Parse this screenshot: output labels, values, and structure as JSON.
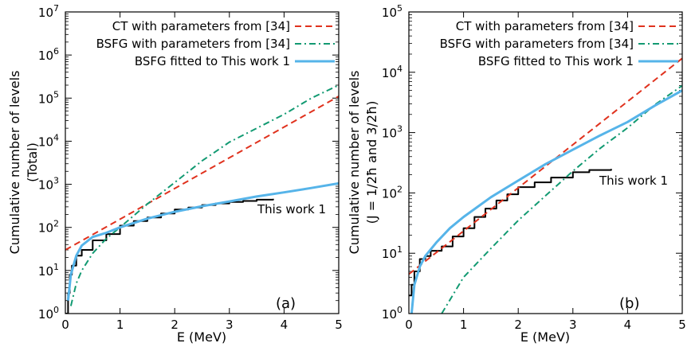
{
  "chart_data": [
    {
      "type": "line",
      "panel_label": "(a)",
      "xlabel": "E (MeV)",
      "ylabel_lines": [
        "Cumulative number of levels",
        "(Total)"
      ],
      "xlim": [
        0,
        5
      ],
      "ylim": [
        1,
        10000000
      ],
      "yscale": "log",
      "xticks": [
        0,
        1,
        2,
        3,
        4,
        5
      ],
      "yticks": [
        {
          "value": 1,
          "base": "10",
          "exp": "0"
        },
        {
          "value": 10,
          "base": "10",
          "exp": "1"
        },
        {
          "value": 100,
          "base": "10",
          "exp": "2"
        },
        {
          "value": 1000,
          "base": "10",
          "exp": "3"
        },
        {
          "value": 10000,
          "base": "10",
          "exp": "4"
        },
        {
          "value": 100000,
          "base": "10",
          "exp": "5"
        },
        {
          "value": 1000000,
          "base": "10",
          "exp": "6"
        },
        {
          "value": 10000000,
          "base": "10",
          "exp": "7"
        }
      ],
      "legend_position": "top-right",
      "annotation": "This work 1",
      "series": [
        {
          "name": "CT with parameters from [34]",
          "color": "#e0321e",
          "style": "dashed",
          "in_legend": true,
          "x": [
            0,
            5
          ],
          "y": [
            30,
            110000
          ]
        },
        {
          "name": "BSFG with parameters from [34]",
          "color": "#129a72",
          "style": "dashdot",
          "in_legend": true,
          "x": [
            0.1,
            0.2,
            0.3,
            0.5,
            0.75,
            1.0,
            1.5,
            2.0,
            2.5,
            3.0,
            3.5,
            4.0,
            4.5,
            5.0
          ],
          "y": [
            1.5,
            5,
            10,
            25,
            55,
            100,
            350,
            1100,
            3500,
            9500,
            20000,
            42000,
            100000,
            200000
          ]
        },
        {
          "name": "BSFG fitted to This work 1",
          "color": "#56b4e9",
          "style": "solid",
          "in_legend": true,
          "x": [
            0.05,
            0.1,
            0.2,
            0.3,
            0.5,
            0.75,
            1.0,
            1.5,
            2.0,
            2.5,
            3.0,
            3.5,
            4.0,
            4.5,
            5.0
          ],
          "y": [
            2,
            8,
            22,
            38,
            60,
            75,
            100,
            160,
            230,
            310,
            400,
            520,
            650,
            820,
            1050
          ]
        },
        {
          "name": "This work 1",
          "color": "#000000",
          "style": "step",
          "in_legend": false,
          "x": [
            0.0,
            0.05,
            0.08,
            0.12,
            0.2,
            0.3,
            0.5,
            0.75,
            1.0,
            1.25,
            1.5,
            1.75,
            2.0,
            2.25,
            2.5,
            2.75,
            3.0,
            3.25,
            3.5,
            3.8
          ],
          "y": [
            1,
            3,
            8,
            13,
            22,
            30,
            50,
            70,
            110,
            140,
            170,
            210,
            260,
            290,
            330,
            360,
            390,
            410,
            440,
            460
          ]
        }
      ]
    },
    {
      "type": "line",
      "panel_label": "(b)",
      "xlabel": "E (MeV)",
      "ylabel_lines": [
        "Cumulative number of levels",
        "(J = 1/2ħ and 3/2ħ)"
      ],
      "xlim": [
        0,
        5
      ],
      "ylim": [
        1,
        100000
      ],
      "yscale": "log",
      "xticks": [
        0,
        1,
        2,
        3,
        4,
        5
      ],
      "yticks": [
        {
          "value": 1,
          "base": "10",
          "exp": "0"
        },
        {
          "value": 10,
          "base": "10",
          "exp": "1"
        },
        {
          "value": 100,
          "base": "10",
          "exp": "2"
        },
        {
          "value": 1000,
          "base": "10",
          "exp": "3"
        },
        {
          "value": 10000,
          "base": "10",
          "exp": "4"
        },
        {
          "value": 100000,
          "base": "10",
          "exp": "5"
        }
      ],
      "legend_position": "top-right",
      "annotation": "This work 1",
      "series": [
        {
          "name": "CT with parameters from [34]",
          "color": "#e0321e",
          "style": "dashed",
          "in_legend": true,
          "x": [
            0,
            5
          ],
          "y": [
            4.5,
            17000
          ]
        },
        {
          "name": "BSFG with parameters from [34]",
          "color": "#129a72",
          "style": "dashdot",
          "in_legend": true,
          "x": [
            0.6,
            1.0,
            1.5,
            2.0,
            2.5,
            3.0,
            3.5,
            4.0,
            4.5,
            5.0
          ],
          "y": [
            1,
            4,
            12,
            35,
            90,
            230,
            550,
            1200,
            2900,
            6000
          ]
        },
        {
          "name": "BSFG fitted to This work 1",
          "color": "#56b4e9",
          "style": "solid",
          "in_legend": true,
          "x": [
            0.05,
            0.1,
            0.2,
            0.3,
            0.5,
            0.75,
            1.0,
            1.5,
            2.0,
            2.5,
            3.0,
            3.5,
            4.0,
            4.5,
            5.0
          ],
          "y": [
            1,
            3,
            6,
            9,
            15,
            26,
            40,
            85,
            160,
            300,
            520,
            900,
            1500,
            2800,
            5000
          ]
        },
        {
          "name": "This work 1",
          "color": "#000000",
          "style": "step",
          "in_legend": false,
          "x": [
            0.0,
            0.05,
            0.1,
            0.2,
            0.3,
            0.4,
            0.6,
            0.8,
            1.0,
            1.2,
            1.4,
            1.6,
            1.8,
            2.0,
            2.3,
            2.6,
            3.0,
            3.3,
            3.7
          ],
          "y": [
            2,
            3,
            5,
            8,
            9,
            11,
            13,
            19,
            26,
            40,
            55,
            75,
            95,
            125,
            150,
            180,
            220,
            240,
            250
          ]
        }
      ]
    }
  ]
}
